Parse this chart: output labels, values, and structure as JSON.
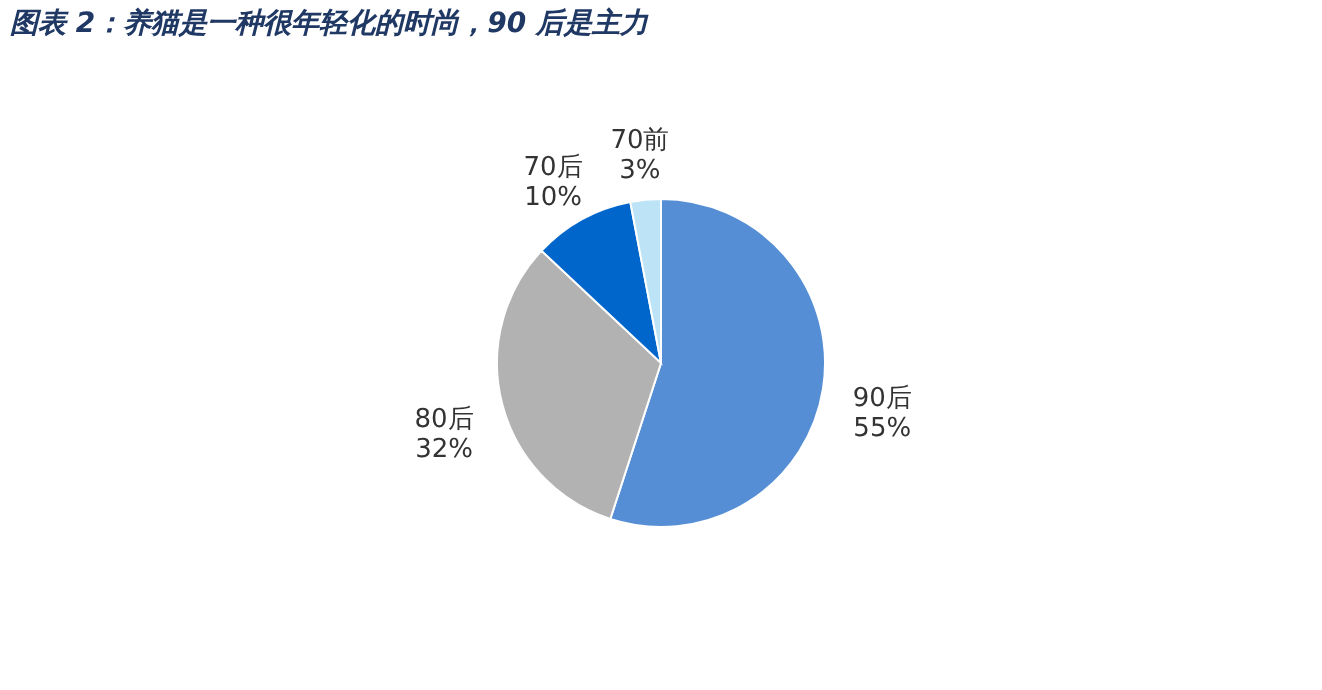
{
  "chart_data": {
    "type": "pie",
    "title": "图表 2：养猫是一种很年轻化的时尚，90 后是主力",
    "categories": [
      "90后",
      "80后",
      "70后",
      "70前"
    ],
    "values": [
      55,
      32,
      10,
      3
    ],
    "colors": [
      "#558ed5",
      "#b2b2b2",
      "#0066cc",
      "#bde3f7"
    ],
    "value_labels": [
      "55%",
      "32%",
      "10%",
      "3%"
    ],
    "legend": false
  }
}
